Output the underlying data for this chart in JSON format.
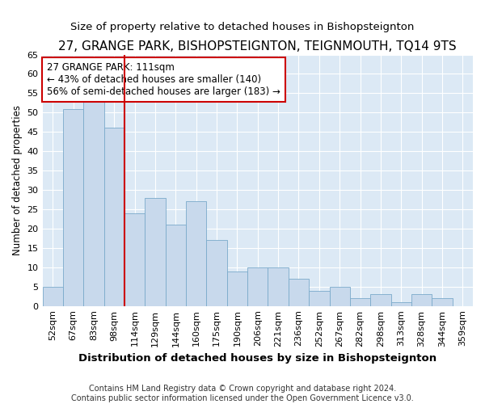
{
  "title": "27, GRANGE PARK, BISHOPSTEIGNTON, TEIGNMOUTH, TQ14 9TS",
  "subtitle": "Size of property relative to detached houses in Bishopsteignton",
  "xlabel": "Distribution of detached houses by size in Bishopsteignton",
  "ylabel": "Number of detached properties",
  "categories": [
    "52sqm",
    "67sqm",
    "83sqm",
    "98sqm",
    "114sqm",
    "129sqm",
    "144sqm",
    "160sqm",
    "175sqm",
    "190sqm",
    "206sqm",
    "221sqm",
    "236sqm",
    "252sqm",
    "267sqm",
    "282sqm",
    "298sqm",
    "313sqm",
    "328sqm",
    "344sqm",
    "359sqm"
  ],
  "values": [
    5,
    51,
    53,
    46,
    24,
    28,
    21,
    27,
    17,
    9,
    10,
    10,
    7,
    4,
    5,
    2,
    3,
    1,
    3,
    2,
    0
  ],
  "bar_color": "#c8d9ec",
  "bar_edge_color": "#7aaaca",
  "vline_x_index": 4,
  "vline_color": "#cc0000",
  "annotation_text": "27 GRANGE PARK: 111sqm\n← 43% of detached houses are smaller (140)\n56% of semi-detached houses are larger (183) →",
  "annotation_box_color": "#ffffff",
  "annotation_box_edge_color": "#cc0000",
  "ylim": [
    0,
    65
  ],
  "yticks": [
    0,
    5,
    10,
    15,
    20,
    25,
    30,
    35,
    40,
    45,
    50,
    55,
    60,
    65
  ],
  "footer": "Contains HM Land Registry data © Crown copyright and database right 2024.\nContains public sector information licensed under the Open Government Licence v3.0.",
  "fig_bg_color": "#ffffff",
  "plot_bg_color": "#dce9f5",
  "grid_color": "#ffffff",
  "title_fontsize": 11,
  "subtitle_fontsize": 9.5,
  "xlabel_fontsize": 9.5,
  "ylabel_fontsize": 8.5,
  "tick_fontsize": 8,
  "annotation_fontsize": 8.5,
  "footer_fontsize": 7
}
